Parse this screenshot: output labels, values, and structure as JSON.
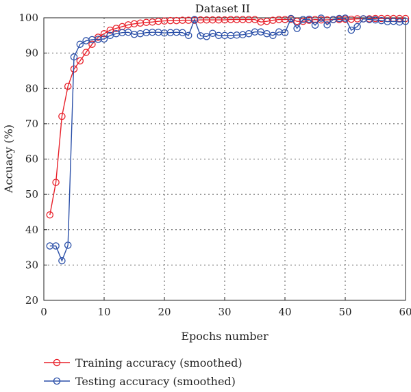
{
  "chart_data": {
    "type": "line",
    "title": "Dataset II",
    "xlabel": "Epochs number",
    "ylabel": "Accuacy (%)",
    "xlim": [
      0,
      60
    ],
    "ylim": [
      20,
      100
    ],
    "xticks": [
      "0",
      "10",
      "20",
      "30",
      "40",
      "50",
      "60"
    ],
    "yticks": [
      "20",
      "30",
      "40",
      "50",
      "60",
      "70",
      "80",
      "90",
      "100"
    ],
    "grid": true,
    "legend_position": "bottom-left, below plot",
    "series": [
      {
        "name": "Training accuracy (smoothed)",
        "color": "#e8202a",
        "marker": "circle",
        "x": [
          1,
          2,
          3,
          4,
          5,
          6,
          7,
          8,
          9,
          10,
          11,
          12,
          13,
          14,
          15,
          16,
          17,
          18,
          19,
          20,
          21,
          22,
          23,
          24,
          25,
          26,
          27,
          28,
          29,
          30,
          31,
          32,
          33,
          34,
          35,
          36,
          37,
          38,
          39,
          40,
          41,
          42,
          43,
          44,
          45,
          46,
          47,
          48,
          49,
          50,
          51,
          52,
          53,
          54,
          55,
          56,
          57,
          58,
          59,
          60
        ],
        "y": [
          44.2,
          53.4,
          72.1,
          80.6,
          85.5,
          87.8,
          90.2,
          92.5,
          94.5,
          95.5,
          96.5,
          97.0,
          97.5,
          98.0,
          98.3,
          98.5,
          98.7,
          98.8,
          99.0,
          99.1,
          99.2,
          99.2,
          99.3,
          99.3,
          99.3,
          99.4,
          99.4,
          99.4,
          99.4,
          99.4,
          99.5,
          99.5,
          99.5,
          99.5,
          99.5,
          98.8,
          99.0,
          99.3,
          99.5,
          99.5,
          99.6,
          99.0,
          99.0,
          99.3,
          99.5,
          99.4,
          99.4,
          99.5,
          99.5,
          99.6,
          99.6,
          99.7,
          99.7,
          99.7,
          99.8,
          99.8,
          99.8,
          99.8,
          99.8,
          99.8
        ]
      },
      {
        "name": "Testing accuracy (smoothed)",
        "color": "#2a4fa8",
        "marker": "circle",
        "x": [
          1,
          2,
          3,
          4,
          5,
          6,
          7,
          8,
          9,
          10,
          11,
          12,
          13,
          14,
          15,
          16,
          17,
          18,
          19,
          20,
          21,
          22,
          23,
          24,
          25,
          26,
          27,
          28,
          29,
          30,
          31,
          32,
          33,
          34,
          35,
          36,
          37,
          38,
          39,
          40,
          41,
          42,
          43,
          44,
          45,
          46,
          47,
          48,
          49,
          50,
          51,
          52,
          53,
          54,
          55,
          56,
          57,
          58,
          59,
          60
        ],
        "y": [
          35.4,
          35.4,
          31.2,
          35.6,
          88.9,
          92.5,
          93.5,
          93.8,
          93.9,
          94.0,
          95.0,
          95.5,
          95.8,
          95.9,
          95.3,
          95.5,
          95.8,
          95.9,
          95.9,
          95.7,
          95.8,
          95.9,
          95.8,
          95.0,
          99.5,
          94.9,
          94.7,
          95.6,
          95.0,
          95.0,
          95.0,
          95.1,
          95.2,
          95.5,
          96.0,
          96.0,
          95.5,
          95.0,
          96.0,
          95.8,
          99.8,
          97.0,
          99.5,
          99.6,
          97.9,
          99.9,
          98.0,
          99.5,
          99.8,
          99.9,
          96.5,
          97.5,
          99.7,
          99.5,
          99.4,
          99.2,
          98.9,
          99.0,
          98.8,
          99.0
        ]
      }
    ]
  }
}
